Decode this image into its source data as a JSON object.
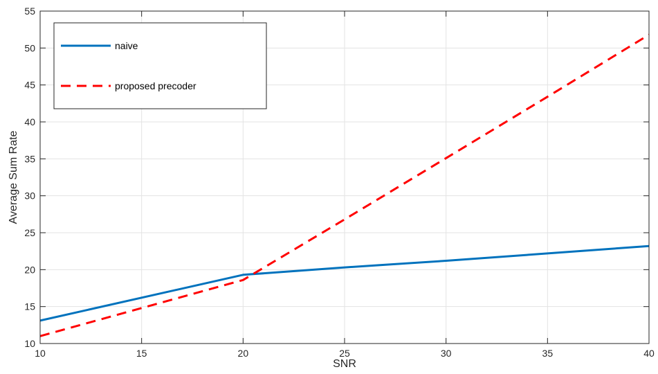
{
  "chart_data": {
    "type": "line",
    "title": "",
    "xlabel": "SNR",
    "ylabel": "Average Sum Rate",
    "xlim": [
      10,
      40
    ],
    "ylim": [
      10,
      55
    ],
    "xticks": [
      10,
      15,
      20,
      25,
      30,
      35,
      40
    ],
    "yticks": [
      10,
      15,
      20,
      25,
      30,
      35,
      40,
      45,
      50,
      55
    ],
    "grid": true,
    "legend_position": "top-left",
    "series": [
      {
        "name": "naive",
        "color": "#0072BD",
        "style": "solid",
        "x": [
          10,
          20,
          25,
          30,
          35,
          40
        ],
        "y": [
          13.1,
          19.3,
          20.3,
          21.2,
          22.2,
          23.2
        ]
      },
      {
        "name": "proposed precoder",
        "color": "#FF0000",
        "style": "dashed",
        "x": [
          10,
          15,
          20,
          25,
          30,
          35,
          40
        ],
        "y": [
          11.0,
          14.8,
          18.6,
          26.8,
          35.1,
          43.4,
          51.8
        ]
      }
    ]
  }
}
